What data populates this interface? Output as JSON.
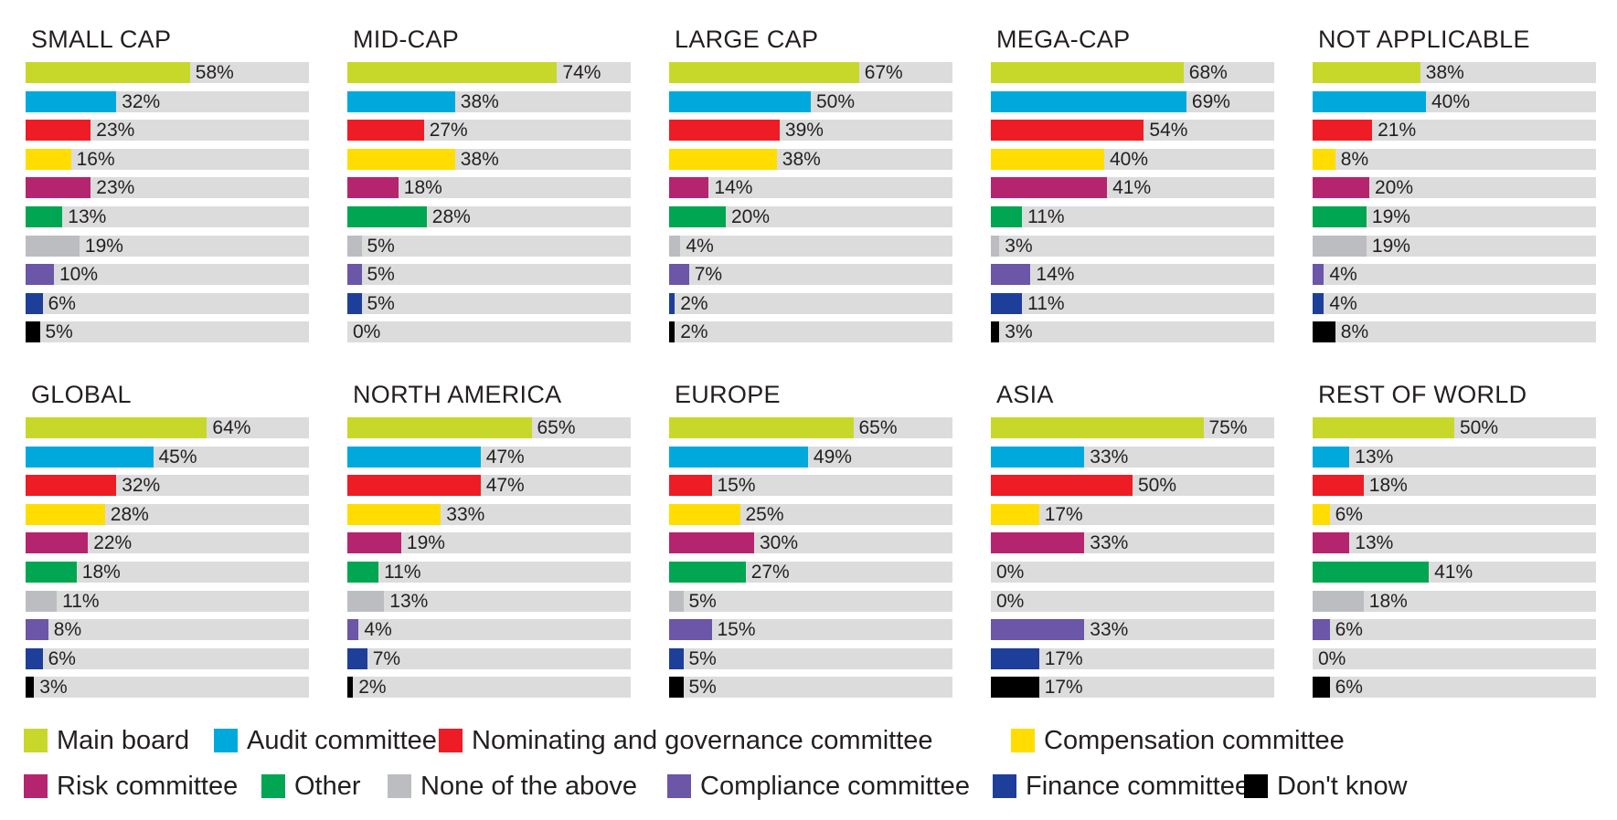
{
  "colors": {
    "Main board": "#c8d82b",
    "Audit committee": "#00a9dc",
    "Nominating and governance committee": "#ee1c25",
    "Compensation committee": "#ffdd00",
    "Risk committee": "#b5256f",
    "Other": "#00a651",
    "None of the above": "#bcbdc0",
    "Compliance committee": "#6b56a8",
    "Finance committee": "#1e3f99",
    "Don't know": "#000000"
  },
  "legend": {
    "items": [
      "Main board",
      "Audit committee",
      "Nominating and governance committee",
      "Compensation committee",
      "Risk committee",
      "Other",
      "None of the above",
      "Compliance committee",
      "Finance committee",
      "Don't know"
    ]
  },
  "chart_data": [
    {
      "type": "bar",
      "title": "SMALL CAP",
      "orientation": "horizontal",
      "xlim": [
        0,
        100
      ],
      "grid": false,
      "categories": [
        "Main board",
        "Audit committee",
        "Nominating and governance committee",
        "Compensation committee",
        "Risk committee",
        "Other",
        "None of the above",
        "Compliance committee",
        "Finance committee",
        "Don't know"
      ],
      "values": [
        58,
        32,
        23,
        16,
        23,
        13,
        19,
        10,
        6,
        5
      ],
      "labels": [
        "58%",
        "32%",
        "23%",
        "16%",
        "23%",
        "13%",
        "19%",
        "10%",
        "6%",
        "5%"
      ]
    },
    {
      "type": "bar",
      "title": "MID-CAP",
      "orientation": "horizontal",
      "xlim": [
        0,
        100
      ],
      "grid": false,
      "categories": [
        "Main board",
        "Audit committee",
        "Nominating and governance committee",
        "Compensation committee",
        "Risk committee",
        "Other",
        "None of the above",
        "Compliance committee",
        "Finance committee",
        "Don't know"
      ],
      "values": [
        74,
        38,
        27,
        38,
        18,
        28,
        5,
        5,
        5,
        0
      ],
      "labels": [
        "74%",
        "38%",
        "27%",
        "38%",
        "18%",
        "28%",
        "5%",
        "5%",
        "5%",
        "0%"
      ]
    },
    {
      "type": "bar",
      "title": "LARGE CAP",
      "orientation": "horizontal",
      "xlim": [
        0,
        100
      ],
      "grid": false,
      "categories": [
        "Main board",
        "Audit committee",
        "Nominating and governance committee",
        "Compensation committee",
        "Risk committee",
        "Other",
        "None of the above",
        "Compliance committee",
        "Finance committee",
        "Don't know"
      ],
      "values": [
        67,
        50,
        39,
        38,
        14,
        20,
        4,
        7,
        2,
        2
      ],
      "labels": [
        "67%",
        "50%",
        "39%",
        "38%",
        "14%",
        "20%",
        "4%",
        "7%",
        "2%",
        "2%"
      ]
    },
    {
      "type": "bar",
      "title": "MEGA-CAP",
      "orientation": "horizontal",
      "xlim": [
        0,
        100
      ],
      "grid": false,
      "categories": [
        "Main board",
        "Audit committee",
        "Nominating and governance committee",
        "Compensation committee",
        "Risk committee",
        "Other",
        "None of the above",
        "Compliance committee",
        "Finance committee",
        "Don't know"
      ],
      "values": [
        68,
        69,
        54,
        40,
        41,
        11,
        3,
        14,
        11,
        3
      ],
      "labels": [
        "68%",
        "69%",
        "54%",
        "40%",
        "41%",
        "11%",
        "3%",
        "14%",
        "11%",
        "3%"
      ]
    },
    {
      "type": "bar",
      "title": "NOT APPLICABLE",
      "orientation": "horizontal",
      "xlim": [
        0,
        100
      ],
      "grid": false,
      "categories": [
        "Main board",
        "Audit committee",
        "Nominating and governance committee",
        "Compensation committee",
        "Risk committee",
        "Other",
        "None of the above",
        "Compliance committee",
        "Finance committee",
        "Don't know"
      ],
      "values": [
        38,
        40,
        21,
        8,
        20,
        19,
        19,
        4,
        4,
        8
      ],
      "labels": [
        "38%",
        "40%",
        "21%",
        "8%",
        "20%",
        "19%",
        "19%",
        "4%",
        "4%",
        "8%"
      ]
    },
    {
      "type": "bar",
      "title": "GLOBAL",
      "orientation": "horizontal",
      "xlim": [
        0,
        100
      ],
      "grid": false,
      "categories": [
        "Main board",
        "Audit committee",
        "Nominating and governance committee",
        "Compensation committee",
        "Risk committee",
        "Other",
        "None of the above",
        "Compliance committee",
        "Finance committee",
        "Don't know"
      ],
      "values": [
        64,
        45,
        32,
        28,
        22,
        18,
        11,
        8,
        6,
        3
      ],
      "labels": [
        "64%",
        "45%",
        "32%",
        "28%",
        "22%",
        "18%",
        "11%",
        "8%",
        "6%",
        "3%"
      ]
    },
    {
      "type": "bar",
      "title": "NORTH AMERICA",
      "orientation": "horizontal",
      "xlim": [
        0,
        100
      ],
      "grid": false,
      "categories": [
        "Main board",
        "Audit committee",
        "Nominating and governance committee",
        "Compensation committee",
        "Risk committee",
        "Other",
        "None of the above",
        "Compliance committee",
        "Finance committee",
        "Don't know"
      ],
      "values": [
        65,
        47,
        47,
        33,
        19,
        11,
        13,
        4,
        7,
        2
      ],
      "labels": [
        "65%",
        "47%",
        "47%",
        "33%",
        "19%",
        "11%",
        "13%",
        "4%",
        "7%",
        "2%"
      ]
    },
    {
      "type": "bar",
      "title": "EUROPE",
      "orientation": "horizontal",
      "xlim": [
        0,
        100
      ],
      "grid": false,
      "categories": [
        "Main board",
        "Audit committee",
        "Nominating and governance committee",
        "Compensation committee",
        "Risk committee",
        "Other",
        "None of the above",
        "Compliance committee",
        "Finance committee",
        "Don't know"
      ],
      "values": [
        65,
        49,
        15,
        25,
        30,
        27,
        5,
        15,
        5,
        5
      ],
      "labels": [
        "65%",
        "49%",
        "15%",
        "25%",
        "30%",
        "27%",
        "5%",
        "15%",
        "5%",
        "5%"
      ]
    },
    {
      "type": "bar",
      "title": "ASIA",
      "orientation": "horizontal",
      "xlim": [
        0,
        100
      ],
      "grid": false,
      "categories": [
        "Main board",
        "Audit committee",
        "Nominating and governance committee",
        "Compensation committee",
        "Risk committee",
        "Other",
        "None of the above",
        "Compliance committee",
        "Finance committee",
        "Don't know"
      ],
      "values": [
        75,
        33,
        50,
        17,
        33,
        0,
        0,
        33,
        17,
        17
      ],
      "labels": [
        "75%",
        "33%",
        "50%",
        "17%",
        "33%",
        "0%",
        "0%",
        "33%",
        "17%",
        "17%"
      ]
    },
    {
      "type": "bar",
      "title": "REST OF WORLD",
      "orientation": "horizontal",
      "xlim": [
        0,
        100
      ],
      "grid": false,
      "categories": [
        "Main board",
        "Audit committee",
        "Nominating and governance committee",
        "Compensation committee",
        "Risk committee",
        "Other",
        "None of the above",
        "Compliance committee",
        "Finance committee",
        "Don't know"
      ],
      "values": [
        50,
        13,
        18,
        6,
        13,
        41,
        18,
        6,
        0,
        6
      ],
      "labels": [
        "50%",
        "13%",
        "18%",
        "6%",
        "13%",
        "41%",
        "18%",
        "6%",
        "0%",
        "6%"
      ]
    }
  ]
}
